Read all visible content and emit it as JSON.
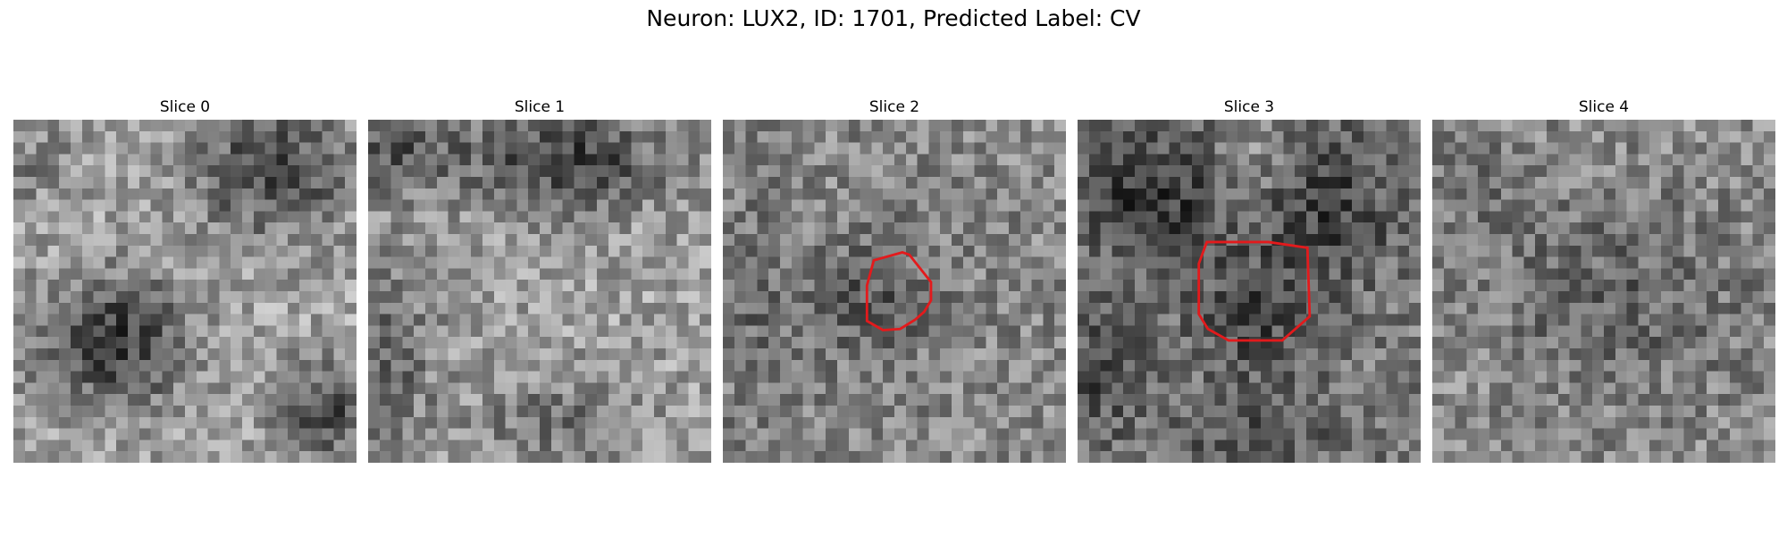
{
  "figure": {
    "title": "Neuron: LUX2, ID: 1701, Predicted Label: CV"
  },
  "slices": [
    {
      "title": "Slice 0",
      "seed": 11,
      "pattern": "slice0",
      "has_roi": false
    },
    {
      "title": "Slice 1",
      "seed": 23,
      "pattern": "slice1",
      "has_roi": false
    },
    {
      "title": "Slice 2",
      "seed": 37,
      "pattern": "slice2",
      "has_roi": true
    },
    {
      "title": "Slice 3",
      "seed": 53,
      "pattern": "slice3",
      "has_roi": true
    },
    {
      "title": "Slice 4",
      "seed": 71,
      "pattern": "slice4",
      "has_roi": false
    }
  ],
  "roi": {
    "color": "#e31a1c"
  }
}
